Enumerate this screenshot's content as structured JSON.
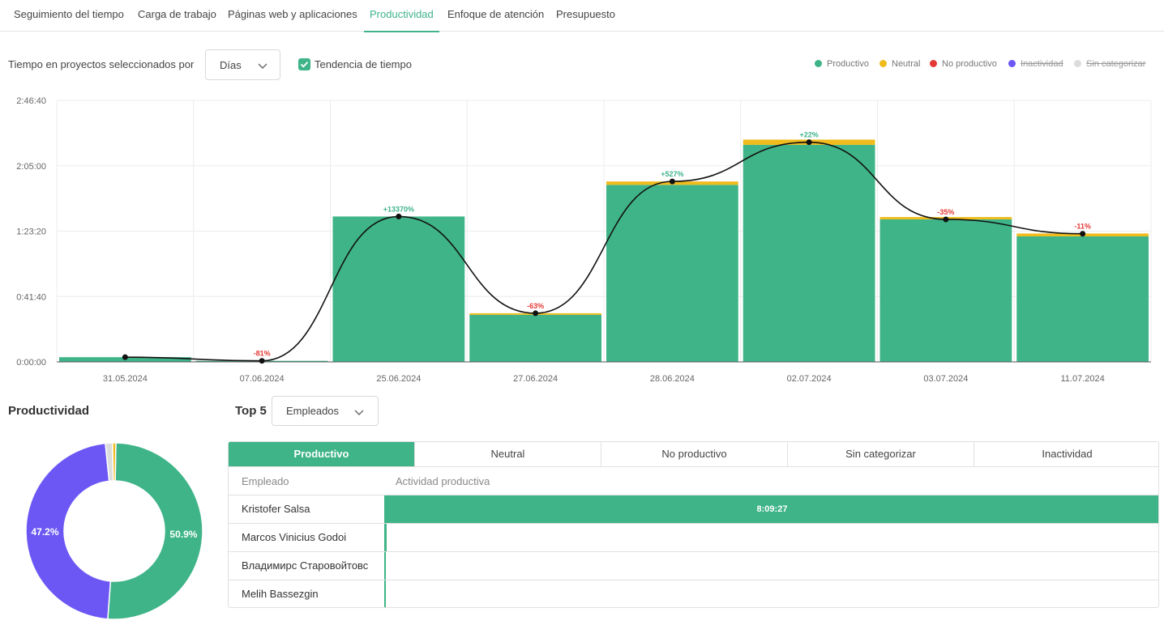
{
  "tabs": [
    {
      "label": "Seguimiento del tiempo",
      "active": false
    },
    {
      "label": "Carga de trabajo",
      "active": false
    },
    {
      "label": "Páginas web y aplicaciones",
      "active": false
    },
    {
      "label": "Productividad",
      "active": true
    },
    {
      "label": "Enfoque de atención",
      "active": false
    },
    {
      "label": "Presupuesto",
      "active": false
    }
  ],
  "controls": {
    "group_by_label": "Tiempo en proyectos seleccionados por",
    "group_by_value": "Días",
    "trend_label": "Tendencia de tiempo",
    "trend_checked": true
  },
  "legend": [
    {
      "label": "Productivo",
      "color": "#3fb489",
      "enabled": true
    },
    {
      "label": "Neutral",
      "color": "#f0bc1c",
      "enabled": true
    },
    {
      "label": "No productivo",
      "color": "#e53935",
      "enabled": true
    },
    {
      "label": "Inactividad",
      "color": "#6c57f5",
      "enabled": false
    },
    {
      "label": "Sin categorizar",
      "color": "#dcdcdc",
      "enabled": false
    }
  ],
  "chart_data": {
    "type": "bar",
    "stacked": true,
    "categories": [
      "31.05.2024",
      "07.06.2024",
      "25.06.2024",
      "27.06.2024",
      "28.06.2024",
      "02.07.2024",
      "03.07.2024",
      "11.07.2024"
    ],
    "y_ticks": [
      "0:00:00",
      "0:41:40",
      "1:23:20",
      "2:05:00",
      "2:46:40"
    ],
    "ylim_seconds": [
      0,
      10000
    ],
    "series": [
      {
        "name": "Productivo",
        "color": "#3fb489",
        "values_seconds": [
          180,
          40,
          5560,
          1800,
          6770,
          8300,
          5450,
          4800
        ]
      },
      {
        "name": "Neutral",
        "color": "#f0bc1c",
        "values_seconds": [
          0,
          0,
          0,
          60,
          130,
          200,
          90,
          110
        ]
      }
    ],
    "trend_values_seconds": [
      180,
      40,
      5560,
      1860,
      6900,
      8400,
      5450,
      4900
    ],
    "trend_labels": [
      "",
      "-81%",
      "+13370%",
      "-63%",
      "+527%",
      "+22%",
      "-35%",
      "-11%"
    ],
    "trend_colors": [
      "#3fb489",
      "#e53935",
      "#3fb489",
      "#e53935",
      "#3fb489",
      "#3fb489",
      "#e53935",
      "#e53935"
    ],
    "grid": true
  },
  "productivity": {
    "title": "Productividad",
    "donut": [
      {
        "name": "Productivo",
        "percent": 50.9,
        "color": "#3fb489",
        "label": "50.9%"
      },
      {
        "name": "Inactividad",
        "percent": 47.2,
        "color": "#6c57f5",
        "label": "47.2%"
      },
      {
        "name": "Sin categorizar",
        "percent": 1.3,
        "color": "#dcdcdc",
        "label": ""
      },
      {
        "name": "Neutral",
        "percent": 0.6,
        "color": "#f0bc1c",
        "label": ""
      }
    ]
  },
  "top5": {
    "label": "Top 5",
    "selector_value": "Empleados",
    "segments": [
      {
        "label": "Productivo",
        "active": true
      },
      {
        "label": "Neutral",
        "active": false
      },
      {
        "label": "No productivo",
        "active": false
      },
      {
        "label": "Sin categorizar",
        "active": false
      },
      {
        "label": "Inactividad",
        "active": false
      }
    ],
    "col_employee": "Empleado",
    "col_activity": "Actividad productiva",
    "rows": [
      {
        "name": "Kristofer Salsa",
        "value_label": "8:09:27",
        "fraction": 1.0
      },
      {
        "name": "Marcos Vinicius Godoi",
        "value_label": "",
        "fraction": 0.003
      },
      {
        "name": "Владимирс Старовойтовс",
        "value_label": "",
        "fraction": 0.001
      },
      {
        "name": "Melih Bassezgin",
        "value_label": "",
        "fraction": 0.001
      }
    ]
  }
}
